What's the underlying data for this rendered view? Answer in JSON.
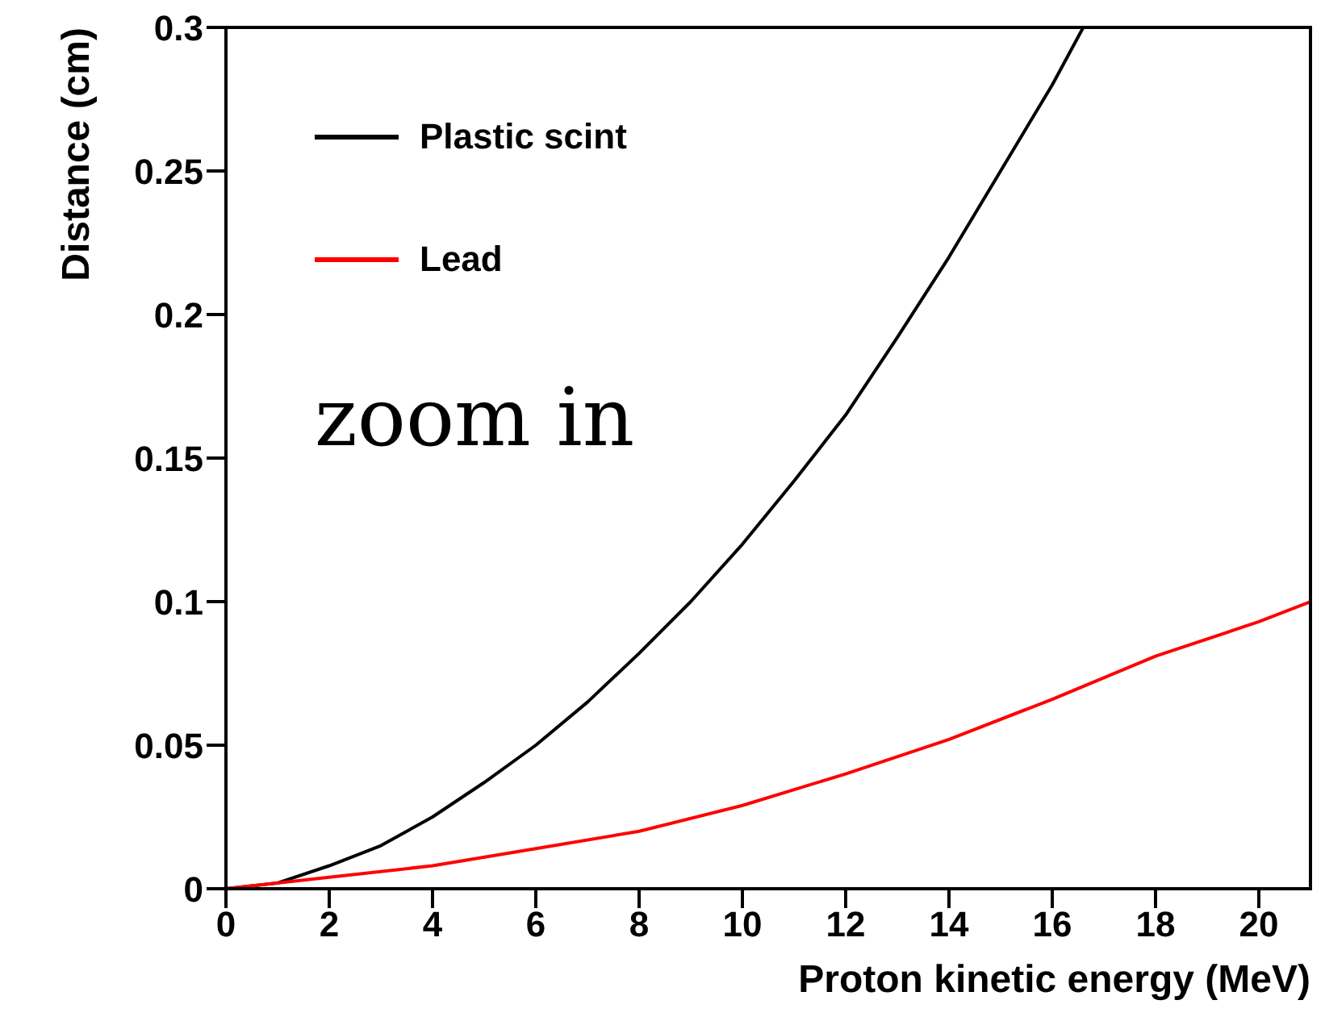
{
  "chart_data": {
    "type": "line",
    "xlabel": "Proton kinetic energy (MeV)",
    "ylabel": "Distance (cm)",
    "xlim": [
      0,
      21
    ],
    "ylim": [
      0,
      0.3
    ],
    "xticks": [
      0,
      2,
      4,
      6,
      8,
      10,
      12,
      14,
      16,
      18,
      20
    ],
    "yticks": [
      0,
      0.05,
      0.1,
      0.15,
      0.2,
      0.25,
      0.3
    ],
    "series": [
      {
        "name": "Plastic scint",
        "color": "#000000",
        "x": [
          0,
          1,
          2,
          3,
          4,
          5,
          6,
          7,
          8,
          9,
          10,
          11,
          12,
          13,
          14,
          15,
          16,
          16.6
        ],
        "values": [
          0,
          0.002,
          0.008,
          0.015,
          0.025,
          0.037,
          0.05,
          0.065,
          0.082,
          0.1,
          0.12,
          0.142,
          0.165,
          0.192,
          0.22,
          0.25,
          0.28,
          0.3
        ]
      },
      {
        "name": "Lead",
        "color": "#ff0000",
        "x": [
          0,
          2,
          4,
          6,
          8,
          10,
          12,
          14,
          16,
          18,
          20,
          21
        ],
        "values": [
          0,
          0.004,
          0.008,
          0.014,
          0.02,
          0.029,
          0.04,
          0.052,
          0.066,
          0.081,
          0.093,
          0.1
        ]
      }
    ],
    "legend": "top left",
    "grid": false,
    "marker": "none",
    "line_style": "solid",
    "annotations": [
      "zoom in"
    ]
  }
}
